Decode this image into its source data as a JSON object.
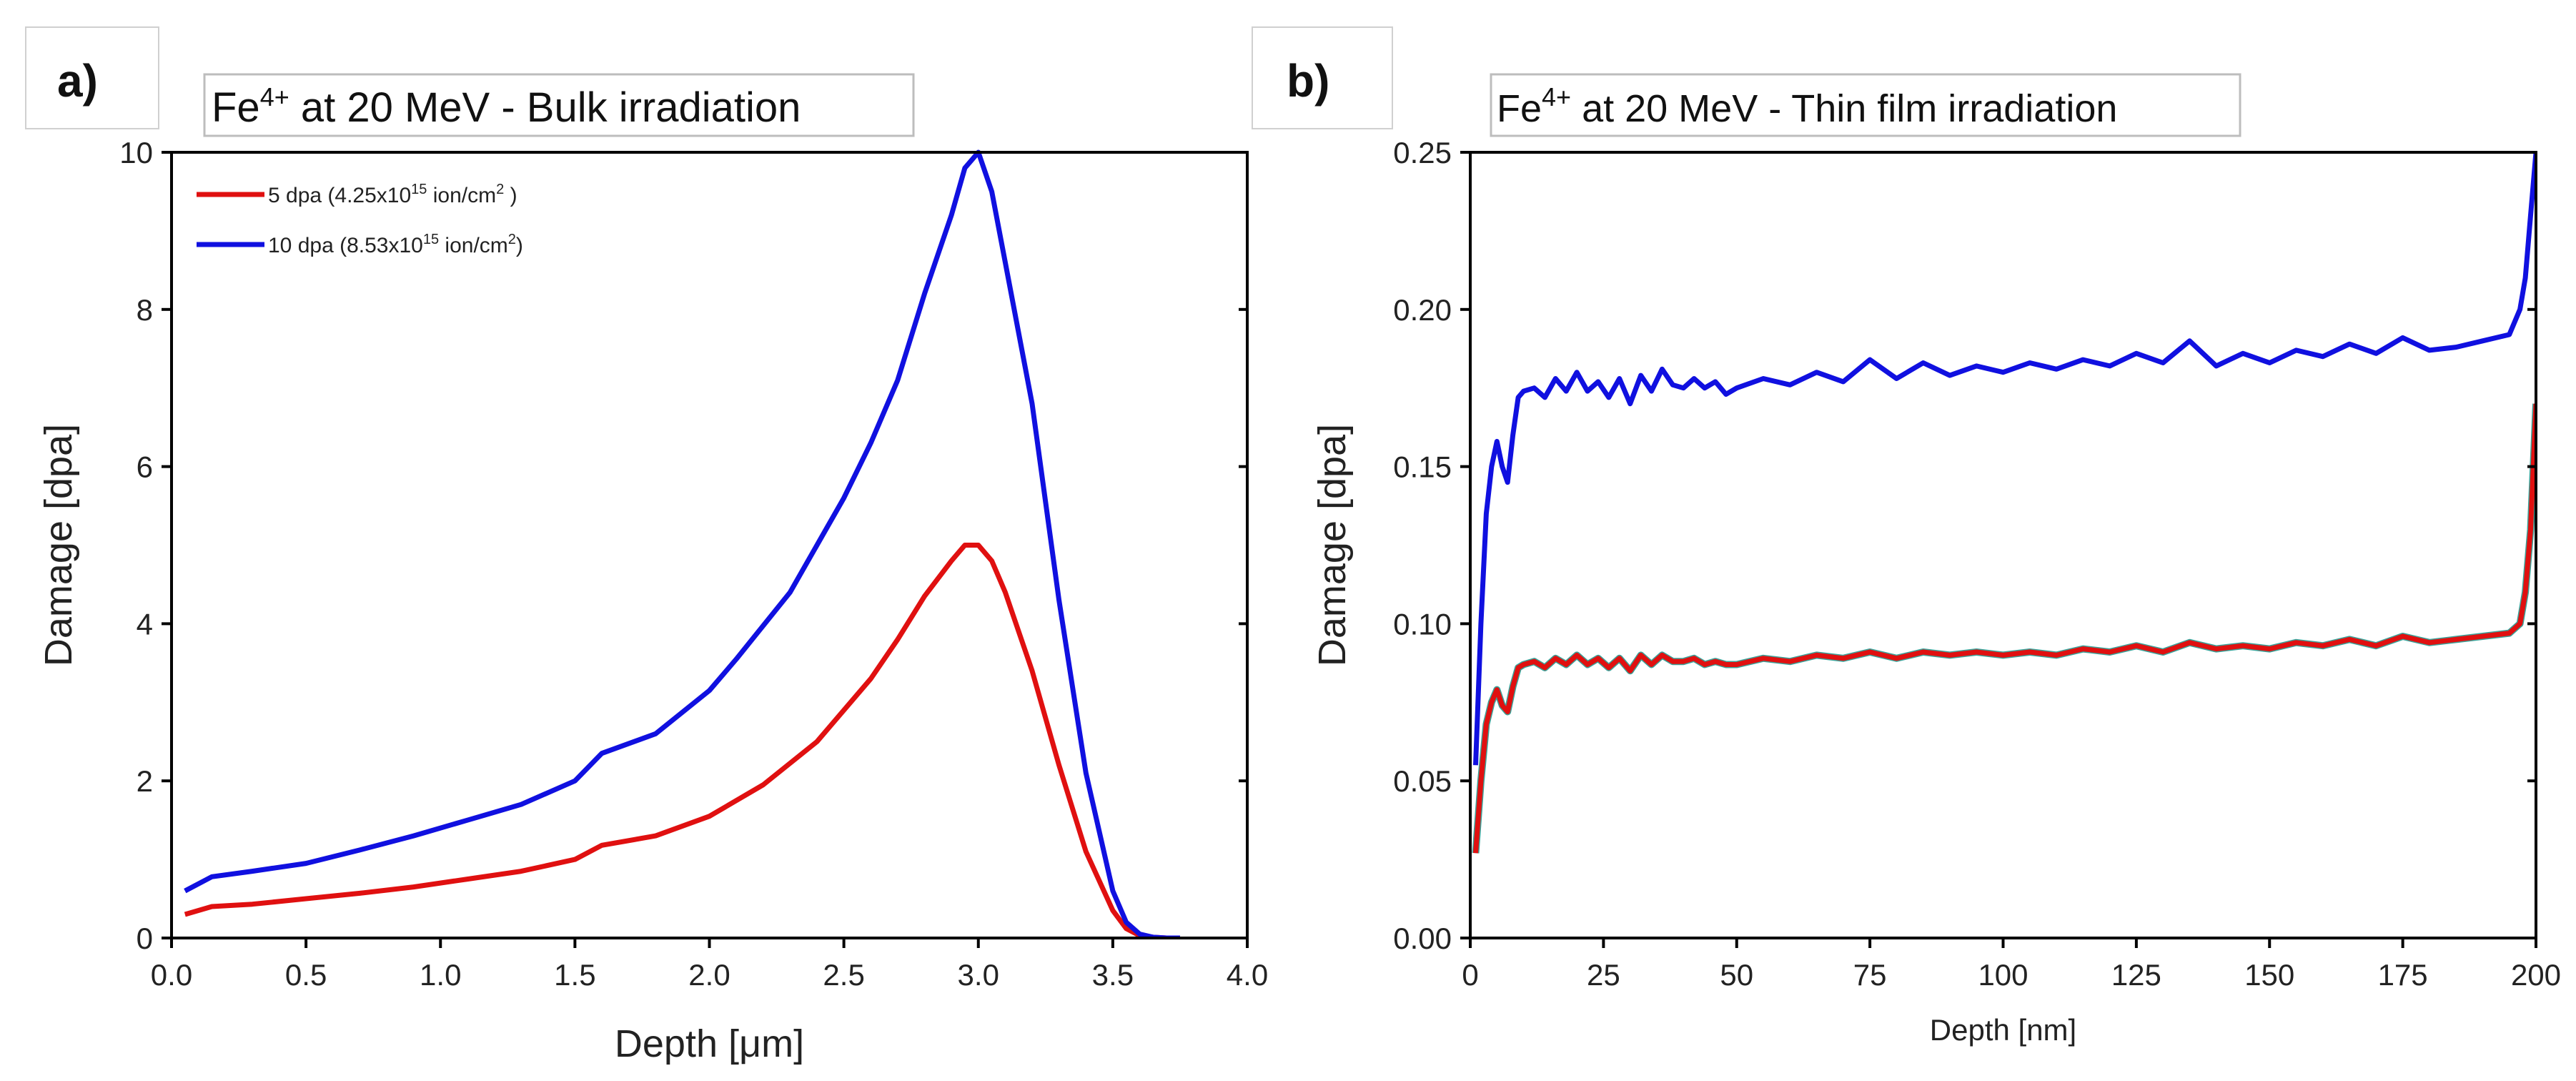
{
  "chart_data": [
    {
      "type": "line",
      "panel_label": "a)",
      "title": {
        "prefix": "Fe",
        "sup": "4+",
        "rest": " at 20 MeV - Bulk irradiation"
      },
      "xlabel": "Depth [μm]",
      "ylabel": "Damage [dpa]",
      "xlim": [
        0,
        4
      ],
      "ylim": [
        0,
        10
      ],
      "xticks": [
        "0.0",
        "0.5",
        "1.0",
        "1.5",
        "2.0",
        "2.5",
        "3.0",
        "3.5",
        "4.0"
      ],
      "xtick_values": [
        0,
        0.5,
        1.0,
        1.5,
        2.0,
        2.5,
        3.0,
        3.5,
        4.0
      ],
      "yticks": [
        "0",
        "2",
        "4",
        "6",
        "8",
        "10"
      ],
      "ytick_values": [
        0,
        2,
        4,
        6,
        8,
        10
      ],
      "legend_position": "top-left",
      "series": [
        {
          "name": "5 dpa",
          "legend": {
            "main": "5 dpa (4.25x10",
            "sup": "15",
            "mid": " ion/cm",
            "sup2": "2",
            "end": " )"
          },
          "color": "#e01010",
          "x": [
            0.05,
            0.15,
            0.3,
            0.5,
            0.7,
            0.9,
            1.1,
            1.3,
            1.5,
            1.6,
            1.8,
            2.0,
            2.2,
            2.4,
            2.6,
            2.7,
            2.8,
            2.9,
            2.95,
            3.0,
            3.05,
            3.1,
            3.2,
            3.3,
            3.4,
            3.5,
            3.55,
            3.6,
            3.65,
            3.7,
            3.75
          ],
          "y": [
            0.3,
            0.4,
            0.43,
            0.5,
            0.57,
            0.65,
            0.75,
            0.85,
            1.0,
            1.18,
            1.3,
            1.55,
            1.95,
            2.5,
            3.3,
            3.8,
            4.35,
            4.8,
            5.0,
            5.0,
            4.8,
            4.4,
            3.4,
            2.2,
            1.1,
            0.35,
            0.12,
            0.03,
            0.01,
            0.0,
            0.0
          ]
        },
        {
          "name": "10 dpa",
          "legend": {
            "main": "10 dpa (8.53x10",
            "sup": "15",
            "mid": " ion/cm",
            "sup2": "2",
            "end": ")"
          },
          "color": "#1010e0",
          "x": [
            0.05,
            0.15,
            0.3,
            0.5,
            0.7,
            0.9,
            1.1,
            1.3,
            1.5,
            1.6,
            1.8,
            2.0,
            2.1,
            2.3,
            2.5,
            2.6,
            2.7,
            2.8,
            2.9,
            2.95,
            3.0,
            3.05,
            3.1,
            3.2,
            3.3,
            3.4,
            3.5,
            3.55,
            3.6,
            3.65,
            3.7,
            3.75
          ],
          "y": [
            0.6,
            0.78,
            0.85,
            0.95,
            1.12,
            1.3,
            1.5,
            1.7,
            2.0,
            2.35,
            2.6,
            3.15,
            3.55,
            4.4,
            5.6,
            6.3,
            7.1,
            8.2,
            9.2,
            9.8,
            10.0,
            9.5,
            8.6,
            6.8,
            4.3,
            2.1,
            0.6,
            0.2,
            0.05,
            0.01,
            0.0,
            0.0
          ]
        }
      ]
    },
    {
      "type": "line",
      "panel_label": "b)",
      "title": {
        "prefix": "Fe",
        "sup": "4+",
        "rest": " at 20 MeV - Thin film irradiation"
      },
      "xlabel": "Depth [nm]",
      "ylabel": "Damage [dpa]",
      "xlim": [
        0,
        200
      ],
      "ylim": [
        0,
        0.25
      ],
      "xticks": [
        "0",
        "25",
        "50",
        "75",
        "100",
        "125",
        "150",
        "175",
        "200"
      ],
      "xtick_values": [
        0,
        25,
        50,
        75,
        100,
        125,
        150,
        175,
        200
      ],
      "yticks": [
        "0.00",
        "0.05",
        "0.10",
        "0.15",
        "0.20",
        "0.25"
      ],
      "ytick_values": [
        0,
        0.05,
        0.1,
        0.15,
        0.2,
        0.25
      ],
      "series": [
        {
          "name": "10 dpa",
          "color": "#1010e0",
          "x": [
            1,
            2,
            3,
            4,
            5,
            6,
            7,
            8,
            9,
            10,
            12,
            14,
            16,
            18,
            20,
            22,
            24,
            26,
            28,
            30,
            32,
            34,
            36,
            38,
            40,
            42,
            44,
            46,
            48,
            50,
            55,
            60,
            65,
            70,
            75,
            80,
            85,
            90,
            95,
            100,
            105,
            110,
            115,
            120,
            125,
            130,
            135,
            140,
            145,
            150,
            155,
            160,
            165,
            170,
            175,
            180,
            185,
            190,
            195,
            197,
            198,
            199,
            200
          ],
          "y": [
            0.055,
            0.1,
            0.135,
            0.15,
            0.158,
            0.15,
            0.145,
            0.16,
            0.172,
            0.174,
            0.175,
            0.172,
            0.178,
            0.174,
            0.18,
            0.174,
            0.177,
            0.172,
            0.178,
            0.17,
            0.179,
            0.174,
            0.181,
            0.176,
            0.175,
            0.178,
            0.175,
            0.177,
            0.173,
            0.175,
            0.178,
            0.176,
            0.18,
            0.177,
            0.184,
            0.178,
            0.183,
            0.179,
            0.182,
            0.18,
            0.183,
            0.181,
            0.184,
            0.182,
            0.186,
            0.183,
            0.19,
            0.182,
            0.186,
            0.183,
            0.187,
            0.185,
            0.189,
            0.186,
            0.191,
            0.187,
            0.188,
            0.19,
            0.192,
            0.2,
            0.21,
            0.23,
            0.25
          ]
        },
        {
          "name": "5 dpa",
          "color": "#e01010",
          "x": [
            1,
            2,
            3,
            4,
            5,
            6,
            7,
            8,
            9,
            10,
            12,
            14,
            16,
            18,
            20,
            22,
            24,
            26,
            28,
            30,
            32,
            34,
            36,
            38,
            40,
            42,
            44,
            46,
            48,
            50,
            55,
            60,
            65,
            70,
            75,
            80,
            85,
            90,
            95,
            100,
            105,
            110,
            115,
            120,
            125,
            130,
            135,
            140,
            145,
            150,
            155,
            160,
            165,
            170,
            175,
            180,
            185,
            190,
            195,
            197,
            198,
            199,
            200
          ],
          "y": [
            0.027,
            0.05,
            0.068,
            0.075,
            0.079,
            0.074,
            0.072,
            0.08,
            0.086,
            0.087,
            0.088,
            0.086,
            0.089,
            0.087,
            0.09,
            0.087,
            0.089,
            0.086,
            0.089,
            0.085,
            0.09,
            0.087,
            0.09,
            0.088,
            0.088,
            0.089,
            0.087,
            0.088,
            0.087,
            0.087,
            0.089,
            0.088,
            0.09,
            0.089,
            0.091,
            0.089,
            0.091,
            0.09,
            0.091,
            0.09,
            0.091,
            0.09,
            0.092,
            0.091,
            0.093,
            0.091,
            0.094,
            0.092,
            0.093,
            0.092,
            0.094,
            0.093,
            0.095,
            0.093,
            0.096,
            0.094,
            0.095,
            0.096,
            0.097,
            0.1,
            0.11,
            0.13,
            0.17
          ]
        }
      ]
    }
  ]
}
